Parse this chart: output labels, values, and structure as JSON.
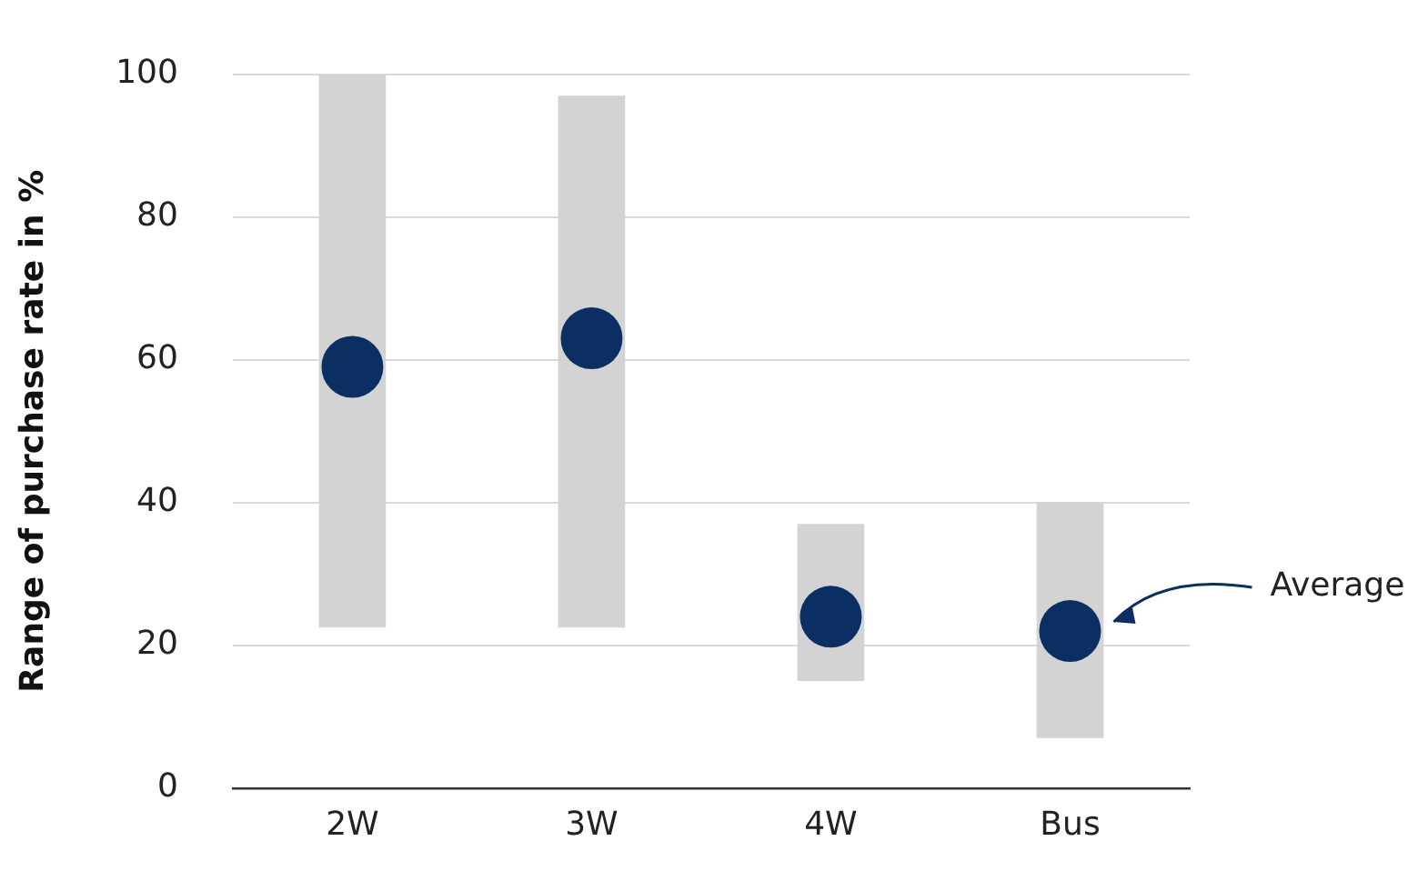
{
  "chart_data": {
    "type": "bar",
    "ylabel": "Range of purchase rate in %",
    "categories": [
      "2W",
      "3W",
      "4W",
      "Bus"
    ],
    "series": [
      {
        "color": "#d3d3d3",
        "base": [
          22.5,
          22.5,
          15,
          7
        ],
        "values": [
          77.5,
          74.5,
          22,
          33
        ]
      },
      {
        "type": "scatter",
        "color": "#0b2f63",
        "marker": "circle",
        "x": [
          "2W",
          "3W",
          "4W",
          "Bus"
        ],
        "values": [
          59,
          63,
          24,
          22
        ]
      }
    ],
    "annotations": [
      "Average"
    ],
    "ylim": [
      0,
      100
    ],
    "yticks": [
      0,
      20,
      40,
      60,
      80,
      100
    ],
    "grid": "y",
    "legend": false
  }
}
